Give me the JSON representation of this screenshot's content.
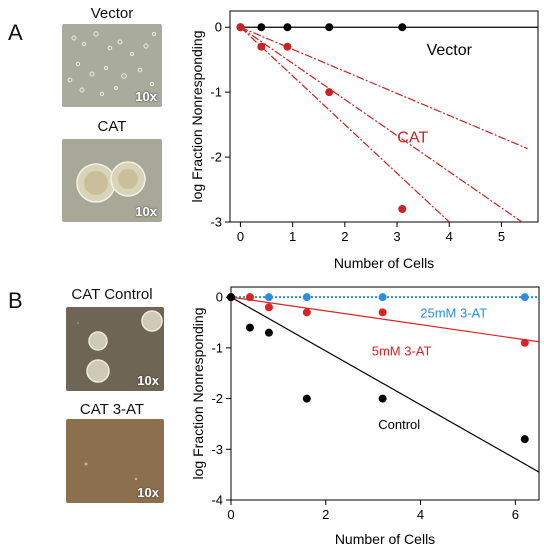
{
  "panels": {
    "A": {
      "letter": "A",
      "images": [
        {
          "label": "Vector",
          "magnification": "10x"
        },
        {
          "label": "CAT",
          "magnification": "10x"
        }
      ]
    },
    "B": {
      "letter": "B",
      "images": [
        {
          "label": "CAT Control",
          "magnification": "10x"
        },
        {
          "label": "CAT 3-AT",
          "magnification": "10x"
        }
      ]
    }
  },
  "chart_data": [
    {
      "type": "scatter",
      "title": "",
      "xlabel": "Number of Cells",
      "ylabel": "log Fraction Nonresponding",
      "xlim": [
        -0.2,
        5.7
      ],
      "ylim": [
        -3,
        0.25
      ],
      "xticks": [
        0,
        1,
        2,
        3,
        4,
        5
      ],
      "yticks": [
        0,
        -1,
        -2,
        -3
      ],
      "grid": false,
      "series": [
        {
          "name": "Vector",
          "color": "#000000",
          "x": [
            0,
            0.4,
            0.9,
            1.7,
            3.1
          ],
          "y": [
            0,
            0,
            0,
            0,
            0
          ]
        },
        {
          "name": "CAT",
          "color": "#cc2222",
          "x": [
            0,
            0.4,
            0.9,
            1.7,
            3.1
          ],
          "y": [
            0,
            -0.3,
            -0.3,
            -1.0,
            -2.8
          ]
        }
      ],
      "fit_lines": [
        {
          "color": "#000000",
          "style": "solid",
          "from": [
            0,
            0
          ],
          "to": [
            5.7,
            0
          ]
        },
        {
          "color": "#cc2222",
          "style": "dashdot",
          "from": [
            0,
            0
          ],
          "to": [
            5.5,
            -1.87
          ]
        },
        {
          "color": "#cc2222",
          "style": "dashdot",
          "from": [
            0,
            0
          ],
          "to": [
            5.5,
            -3.06
          ]
        },
        {
          "color": "#cc2222",
          "style": "dashdot",
          "from": [
            0,
            0
          ],
          "to": [
            4.0,
            -3.0
          ]
        }
      ],
      "annotations": [
        {
          "text": "Vector",
          "color": "#000000",
          "x": 4.0,
          "y": -0.35
        },
        {
          "text": "CAT",
          "color": "#cc2222",
          "x": 3.3,
          "y": -1.7
        }
      ]
    },
    {
      "type": "scatter",
      "title": "",
      "xlabel": "Number of Cells",
      "ylabel": "log Fraction Nonresponding",
      "xlim": [
        0,
        6.5
      ],
      "ylim": [
        -4,
        0.2
      ],
      "xticks": [
        0,
        2,
        4,
        6
      ],
      "yticks": [
        0,
        -1,
        -2,
        -3,
        -4
      ],
      "grid": false,
      "series": [
        {
          "name": "25mM 3-AT",
          "color": "#2a8fe0",
          "x": [
            0,
            0.4,
            0.8,
            1.6,
            3.2,
            6.2
          ],
          "y": [
            0,
            0,
            0,
            0,
            0,
            0
          ]
        },
        {
          "name": "5mM 3-AT",
          "color": "#dd2222",
          "x": [
            0,
            0.4,
            0.8,
            1.6,
            3.2,
            6.2
          ],
          "y": [
            0,
            0,
            -0.2,
            -0.3,
            -0.3,
            -0.9
          ]
        },
        {
          "name": "Control",
          "color": "#000000",
          "x": [
            0,
            0.4,
            0.8,
            1.6,
            3.2,
            6.2
          ],
          "y": [
            0,
            -0.6,
            -0.7,
            -2.0,
            -2.0,
            -2.8
          ]
        }
      ],
      "fit_lines": [
        {
          "color": "#2a8fe0",
          "style": "dotted",
          "from": [
            0,
            0
          ],
          "to": [
            6.5,
            0
          ]
        },
        {
          "color": "#000000",
          "style": "solid",
          "from": [
            0,
            0
          ],
          "to": [
            6.5,
            -3.45
          ]
        },
        {
          "color": "#dd2222",
          "style": "solid",
          "from": [
            0,
            0
          ],
          "to": [
            6.5,
            -0.88
          ]
        }
      ],
      "annotations": [
        {
          "text": "25mM 3-AT",
          "color": "#2a8fe0",
          "x": 4.7,
          "y": -0.3
        },
        {
          "text": "5mM 3-AT",
          "color": "#dd2222",
          "x": 3.6,
          "y": -1.05
        },
        {
          "text": "Control",
          "color": "#000000",
          "x": 3.55,
          "y": -2.5
        }
      ]
    }
  ]
}
